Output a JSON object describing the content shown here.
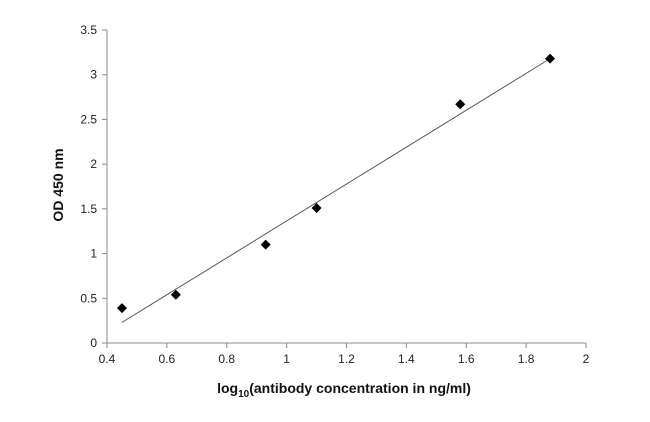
{
  "chart_data": {
    "type": "scatter",
    "xlabel_main": "log",
    "xlabel_sub": "10",
    "xlabel_rest": "(antibody concentration in ng/ml)",
    "ylabel": "OD 450 nm",
    "xlim": [
      0.4,
      2
    ],
    "ylim": [
      0,
      3.5
    ],
    "x_ticks": [
      "0.4",
      "0.6",
      "0.8",
      "1",
      "1.2",
      "1.4",
      "1.6",
      "1.8",
      "2"
    ],
    "y_ticks": [
      "0",
      "0.5",
      "1",
      "1.5",
      "2",
      "2.5",
      "3",
      "3.5"
    ],
    "grid": false,
    "legend": "none",
    "series": [
      {
        "marker": "diamond",
        "color": "#000000",
        "points": [
          {
            "x": 0.45,
            "y": 0.39
          },
          {
            "x": 0.63,
            "y": 0.54
          },
          {
            "x": 0.93,
            "y": 1.1
          },
          {
            "x": 1.1,
            "y": 1.51
          },
          {
            "x": 1.58,
            "y": 2.67
          },
          {
            "x": 1.88,
            "y": 3.18
          }
        ]
      }
    ],
    "trendline": {
      "type": "linear",
      "color": "#555555",
      "x_start": 0.45,
      "y_start": 0.23,
      "x_end": 1.88,
      "y_end": 3.18
    }
  }
}
